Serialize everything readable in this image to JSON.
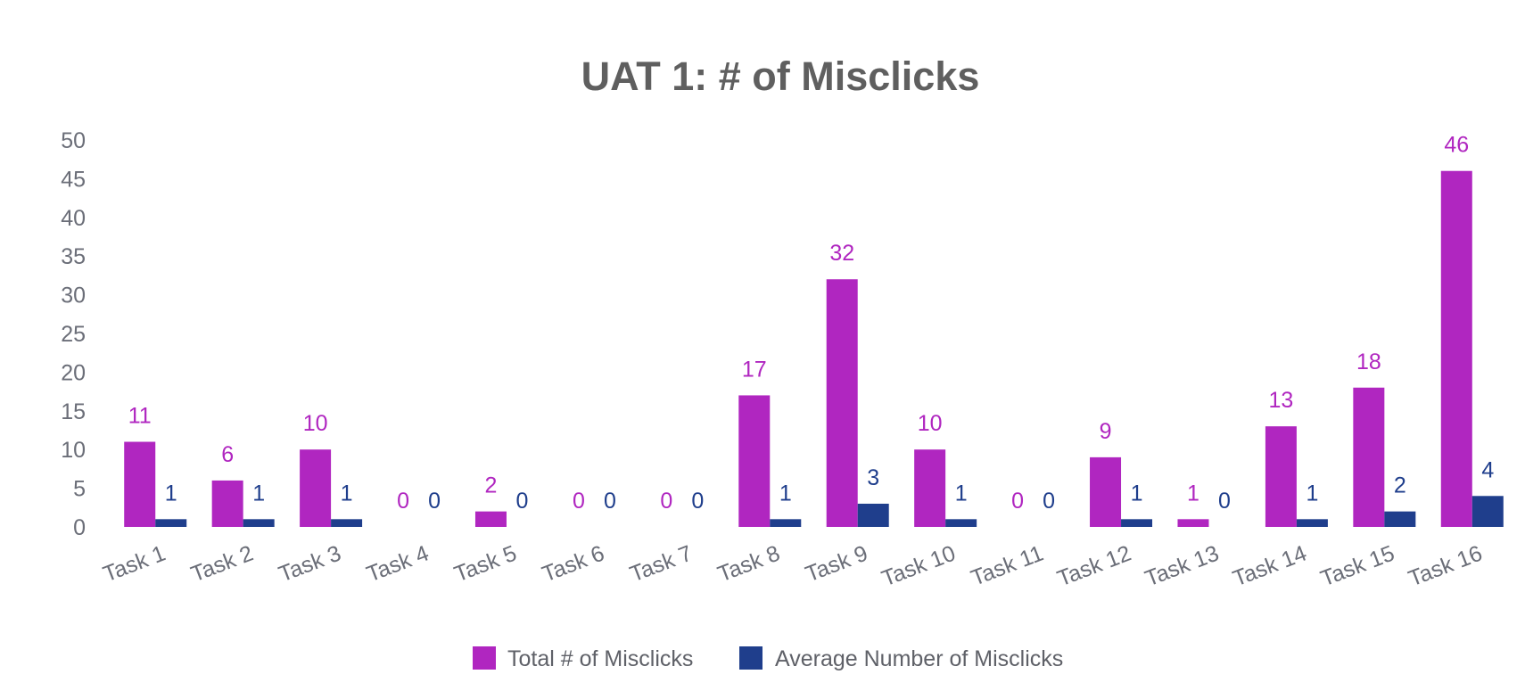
{
  "chart_data": {
    "type": "bar",
    "title": "UAT 1: # of Misclicks",
    "xlabel": "",
    "ylabel": "",
    "ylim": [
      0,
      50
    ],
    "yticks": [
      0,
      5,
      10,
      15,
      20,
      25,
      30,
      35,
      40,
      45,
      50
    ],
    "categories": [
      "Task 1",
      "Task 2",
      "Task 3",
      "Task 4",
      "Task 5",
      "Task 6",
      "Task 7",
      "Task 8",
      "Task 9",
      "Task 10",
      "Task 11",
      "Task 12",
      "Task 13",
      "Task 14",
      "Task 15",
      "Task 16"
    ],
    "series": [
      {
        "name": "Total # of Misclicks",
        "color": "#b026c0",
        "values": [
          11,
          6,
          10,
          0,
          2,
          0,
          0,
          17,
          32,
          10,
          0,
          9,
          1,
          13,
          18,
          46
        ]
      },
      {
        "name": "Average Number of Misclicks",
        "color": "#1f3e8c",
        "values": [
          1,
          1,
          1,
          0,
          0,
          0,
          0,
          1,
          3,
          1,
          0,
          1,
          0,
          1,
          2,
          4
        ]
      }
    ],
    "grid": false,
    "data_labels": true,
    "legend_position": "bottom"
  }
}
